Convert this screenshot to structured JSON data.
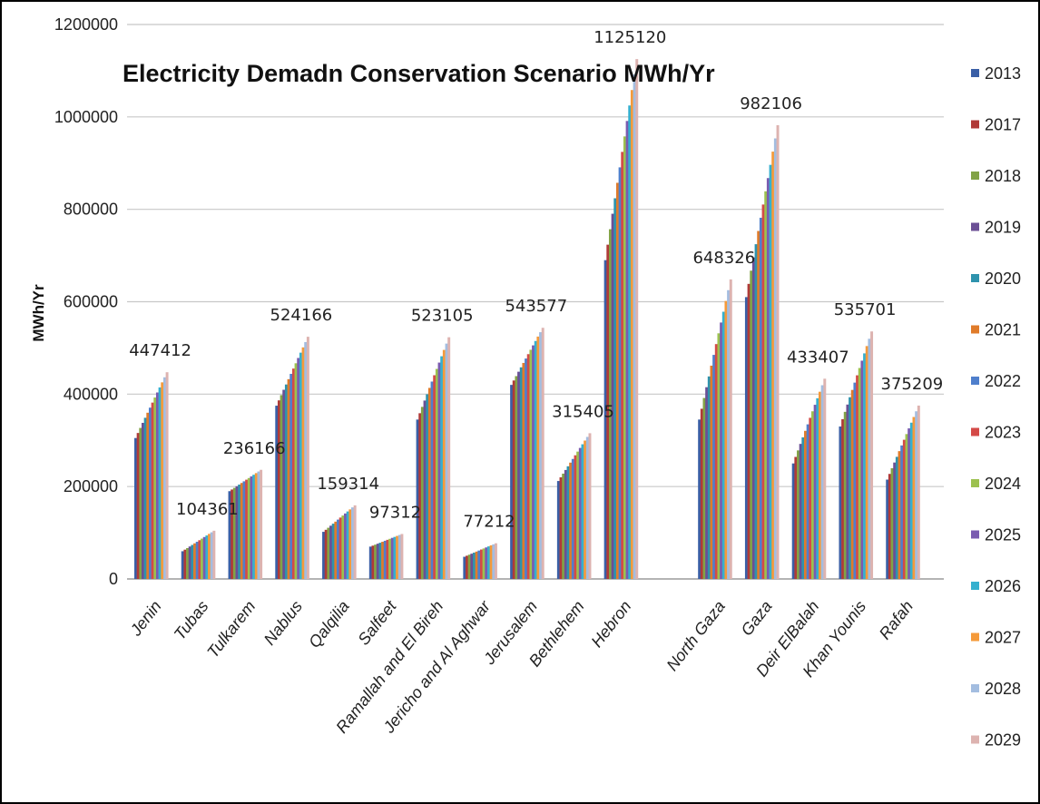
{
  "chart_data": {
    "type": "bar",
    "title": "Electricity Demadn Conservation Scenario MWh/Yr",
    "ylabel": "MWh/Yr",
    "xlabel": "",
    "ylim": [
      0,
      1200000
    ],
    "yticks": [
      "0",
      "200000",
      "400000",
      "600000",
      "800000",
      "1000000",
      "1200000"
    ],
    "grid": true,
    "legend_position": "right",
    "series_names": [
      "2013",
      "2017",
      "2018",
      "2019",
      "2020",
      "2021",
      "2022",
      "2023",
      "2024",
      "2025",
      "2026",
      "2027",
      "2028",
      "2029"
    ],
    "series_colors": [
      "#3a5fa6",
      "#b03a38",
      "#82a346",
      "#6b4f95",
      "#2e93ad",
      "#e07b2a",
      "#4f7fcc",
      "#d44a47",
      "#9cc14f",
      "#7a5bb0",
      "#35b0cf",
      "#f59a3a",
      "#a3bde0",
      "#ddb3b0"
    ],
    "categories": [
      "Jenin",
      "Tubas",
      "Tulkarem",
      "Nablus",
      "Qalqilia",
      "Salfeet",
      "Ramallah and El Bireh",
      "Jericho and Al Aghwar",
      "Jerusalem",
      "Bethlehem",
      "Hebron",
      "",
      "North Gaza",
      "Gaza",
      "Deir ElBalah",
      "Khan Younis",
      "Rafah"
    ],
    "first_values": [
      305000,
      60000,
      190000,
      375000,
      102000,
      70000,
      345000,
      48000,
      420000,
      212000,
      690000,
      0,
      345000,
      610000,
      250000,
      330000,
      215000
    ],
    "last_values": [
      447412,
      104361,
      236166,
      524166,
      159314,
      97312,
      523105,
      77212,
      543577,
      315405,
      1125120,
      0,
      648326,
      982106,
      433407,
      535701,
      375209
    ],
    "data_labels": [
      "447412",
      "104361",
      "236166",
      "524166",
      "159314",
      "97312",
      "523105",
      "77212",
      "543577",
      "315405",
      "1125120",
      "",
      "648326",
      "982106",
      "433407",
      "535701",
      "375209"
    ]
  }
}
